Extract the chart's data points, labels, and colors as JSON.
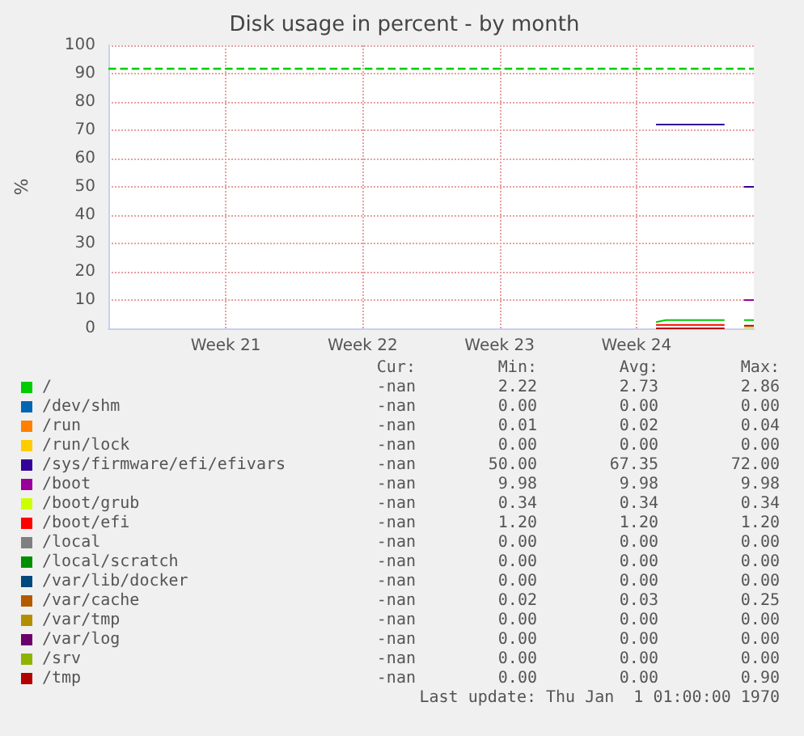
{
  "chart_data": {
    "type": "line",
    "title": "Disk usage in percent - by month",
    "ylabel": "%",
    "categories": [
      null,
      null,
      null,
      null,
      null,
      null,
      null,
      null,
      null,
      null,
      null,
      null,
      "Week 21",
      null,
      null,
      null,
      null,
      null,
      null,
      null,
      null,
      null,
      null,
      null,
      null,
      null,
      "Week 22",
      null,
      null,
      null,
      null,
      null,
      null,
      null,
      null,
      null,
      null,
      null,
      null,
      null,
      "Week 23",
      null,
      null,
      null,
      null,
      null,
      null,
      null,
      null,
      null,
      null,
      null,
      null,
      null,
      "Week 24",
      null,
      null,
      null,
      null,
      null,
      null,
      null,
      null,
      null,
      null,
      null,
      null
    ],
    "ylim": [
      0,
      100
    ],
    "yticks": [
      0,
      10,
      20,
      30,
      40,
      50,
      60,
      70,
      80,
      90,
      100
    ],
    "grid": true,
    "legend": "bottom",
    "ref_lines": [
      {
        "axis": "y",
        "value": 92,
        "color": "#00cc00",
        "line_style": "dashed"
      }
    ],
    "series": [
      {
        "name": "/",
        "color": "#00cc00",
        "values": [
          null,
          null,
          null,
          null,
          null,
          null,
          null,
          null,
          null,
          null,
          null,
          null,
          null,
          null,
          null,
          null,
          null,
          null,
          null,
          null,
          null,
          null,
          null,
          null,
          null,
          null,
          null,
          null,
          null,
          null,
          null,
          null,
          null,
          null,
          null,
          null,
          null,
          null,
          null,
          null,
          null,
          null,
          null,
          null,
          null,
          null,
          null,
          null,
          null,
          null,
          null,
          null,
          null,
          null,
          null,
          null,
          2.2,
          2.9,
          2.9,
          2.9,
          2.9,
          2.9,
          2.9,
          2.9,
          null,
          2.9,
          2.9
        ]
      },
      {
        "name": "/dev/shm",
        "color": "#0066b3",
        "values": [
          null,
          null,
          null,
          null,
          null,
          null,
          null,
          null,
          null,
          null,
          null,
          null,
          null,
          null,
          null,
          null,
          null,
          null,
          null,
          null,
          null,
          null,
          null,
          null,
          null,
          null,
          null,
          null,
          null,
          null,
          null,
          null,
          null,
          null,
          null,
          null,
          null,
          null,
          null,
          null,
          null,
          null,
          null,
          null,
          null,
          null,
          null,
          null,
          null,
          null,
          null,
          null,
          null,
          null,
          null,
          null,
          null,
          null,
          null,
          null,
          null,
          null,
          null,
          null,
          null,
          null,
          null
        ]
      },
      {
        "name": "/run",
        "color": "#ff8000",
        "values": [
          null,
          null,
          null,
          null,
          null,
          null,
          null,
          null,
          null,
          null,
          null,
          null,
          null,
          null,
          null,
          null,
          null,
          null,
          null,
          null,
          null,
          null,
          null,
          null,
          null,
          null,
          null,
          null,
          null,
          null,
          null,
          null,
          null,
          null,
          null,
          null,
          null,
          null,
          null,
          null,
          null,
          null,
          null,
          null,
          null,
          null,
          null,
          null,
          null,
          null,
          null,
          null,
          null,
          null,
          null,
          null,
          null,
          null,
          null,
          null,
          null,
          null,
          null,
          null,
          null,
          null,
          null
        ]
      },
      {
        "name": "/run/lock",
        "color": "#ffcc00",
        "values": [
          null,
          null,
          null,
          null,
          null,
          null,
          null,
          null,
          null,
          null,
          null,
          null,
          null,
          null,
          null,
          null,
          null,
          null,
          null,
          null,
          null,
          null,
          null,
          null,
          null,
          null,
          null,
          null,
          null,
          null,
          null,
          null,
          null,
          null,
          null,
          null,
          null,
          null,
          null,
          null,
          null,
          null,
          null,
          null,
          null,
          null,
          null,
          null,
          null,
          null,
          null,
          null,
          null,
          null,
          null,
          null,
          null,
          null,
          null,
          null,
          null,
          null,
          null,
          null,
          null,
          null,
          null
        ]
      },
      {
        "name": "/sys/firmware/efi/efivars",
        "color": "#330099",
        "values": [
          null,
          null,
          null,
          null,
          null,
          null,
          null,
          null,
          null,
          null,
          null,
          null,
          null,
          null,
          null,
          null,
          null,
          null,
          null,
          null,
          null,
          null,
          null,
          null,
          null,
          null,
          null,
          null,
          null,
          null,
          null,
          null,
          null,
          null,
          null,
          null,
          null,
          null,
          null,
          null,
          null,
          null,
          null,
          null,
          null,
          null,
          null,
          null,
          null,
          null,
          null,
          null,
          null,
          null,
          null,
          null,
          72,
          72,
          72,
          72,
          72,
          72,
          72,
          72,
          null,
          50,
          50
        ]
      },
      {
        "name": "/boot",
        "color": "#990099",
        "values": [
          null,
          null,
          null,
          null,
          null,
          null,
          null,
          null,
          null,
          null,
          null,
          null,
          null,
          null,
          null,
          null,
          null,
          null,
          null,
          null,
          null,
          null,
          null,
          null,
          null,
          null,
          null,
          null,
          null,
          null,
          null,
          null,
          null,
          null,
          null,
          null,
          null,
          null,
          null,
          null,
          null,
          null,
          null,
          null,
          null,
          null,
          null,
          null,
          null,
          null,
          null,
          null,
          null,
          null,
          null,
          null,
          null,
          null,
          null,
          null,
          null,
          null,
          null,
          null,
          null,
          10,
          10
        ]
      },
      {
        "name": "/boot/grub",
        "color": "#ccff00",
        "values": [
          null,
          null,
          null,
          null,
          null,
          null,
          null,
          null,
          null,
          null,
          null,
          null,
          null,
          null,
          null,
          null,
          null,
          null,
          null,
          null,
          null,
          null,
          null,
          null,
          null,
          null,
          null,
          null,
          null,
          null,
          null,
          null,
          null,
          null,
          null,
          null,
          null,
          null,
          null,
          null,
          null,
          null,
          null,
          null,
          null,
          null,
          null,
          null,
          null,
          null,
          null,
          null,
          null,
          null,
          null,
          null,
          null,
          null,
          null,
          null,
          null,
          null,
          null,
          null,
          null,
          0.3,
          0.3
        ]
      },
      {
        "name": "/boot/efi",
        "color": "#ff0000",
        "values": [
          null,
          null,
          null,
          null,
          null,
          null,
          null,
          null,
          null,
          null,
          null,
          null,
          null,
          null,
          null,
          null,
          null,
          null,
          null,
          null,
          null,
          null,
          null,
          null,
          null,
          null,
          null,
          null,
          null,
          null,
          null,
          null,
          null,
          null,
          null,
          null,
          null,
          null,
          null,
          null,
          null,
          null,
          null,
          null,
          null,
          null,
          null,
          null,
          null,
          null,
          null,
          null,
          null,
          null,
          null,
          null,
          1.2,
          1.2,
          1.2,
          1.2,
          1.2,
          1.2,
          1.2,
          1.2,
          null,
          null,
          null
        ]
      },
      {
        "name": "/local",
        "color": "#808080",
        "values": [
          null,
          null,
          null,
          null,
          null,
          null,
          null,
          null,
          null,
          null,
          null,
          null,
          null,
          null,
          null,
          null,
          null,
          null,
          null,
          null,
          null,
          null,
          null,
          null,
          null,
          null,
          null,
          null,
          null,
          null,
          null,
          null,
          null,
          null,
          null,
          null,
          null,
          null,
          null,
          null,
          null,
          null,
          null,
          null,
          null,
          null,
          null,
          null,
          null,
          null,
          null,
          null,
          null,
          null,
          null,
          null,
          null,
          null,
          null,
          null,
          null,
          null,
          null,
          null,
          null,
          null,
          null
        ]
      },
      {
        "name": "/local/scratch",
        "color": "#008f00",
        "values": [
          null,
          null,
          null,
          null,
          null,
          null,
          null,
          null,
          null,
          null,
          null,
          null,
          null,
          null,
          null,
          null,
          null,
          null,
          null,
          null,
          null,
          null,
          null,
          null,
          null,
          null,
          null,
          null,
          null,
          null,
          null,
          null,
          null,
          null,
          null,
          null,
          null,
          null,
          null,
          null,
          null,
          null,
          null,
          null,
          null,
          null,
          null,
          null,
          null,
          null,
          null,
          null,
          null,
          null,
          null,
          null,
          null,
          null,
          null,
          null,
          null,
          null,
          null,
          null,
          null,
          null,
          null
        ]
      },
      {
        "name": "/var/lib/docker",
        "color": "#00487d",
        "values": [
          null,
          null,
          null,
          null,
          null,
          null,
          null,
          null,
          null,
          null,
          null,
          null,
          null,
          null,
          null,
          null,
          null,
          null,
          null,
          null,
          null,
          null,
          null,
          null,
          null,
          null,
          null,
          null,
          null,
          null,
          null,
          null,
          null,
          null,
          null,
          null,
          null,
          null,
          null,
          null,
          null,
          null,
          null,
          null,
          null,
          null,
          null,
          null,
          null,
          null,
          null,
          null,
          null,
          null,
          null,
          null,
          null,
          null,
          null,
          null,
          null,
          null,
          null,
          null,
          null,
          null,
          null
        ]
      },
      {
        "name": "/var/cache",
        "color": "#b35a00",
        "values": [
          null,
          null,
          null,
          null,
          null,
          null,
          null,
          null,
          null,
          null,
          null,
          null,
          null,
          null,
          null,
          null,
          null,
          null,
          null,
          null,
          null,
          null,
          null,
          null,
          null,
          null,
          null,
          null,
          null,
          null,
          null,
          null,
          null,
          null,
          null,
          null,
          null,
          null,
          null,
          null,
          null,
          null,
          null,
          null,
          null,
          null,
          null,
          null,
          null,
          null,
          null,
          null,
          null,
          null,
          null,
          null,
          null,
          null,
          null,
          null,
          null,
          null,
          null,
          null,
          null,
          null,
          null
        ]
      },
      {
        "name": "/var/tmp",
        "color": "#b38f00",
        "values": [
          null,
          null,
          null,
          null,
          null,
          null,
          null,
          null,
          null,
          null,
          null,
          null,
          null,
          null,
          null,
          null,
          null,
          null,
          null,
          null,
          null,
          null,
          null,
          null,
          null,
          null,
          null,
          null,
          null,
          null,
          null,
          null,
          null,
          null,
          null,
          null,
          null,
          null,
          null,
          null,
          null,
          null,
          null,
          null,
          null,
          null,
          null,
          null,
          null,
          null,
          null,
          null,
          null,
          null,
          null,
          null,
          null,
          null,
          null,
          null,
          null,
          null,
          null,
          null,
          null,
          null,
          null
        ]
      },
      {
        "name": "/var/log",
        "color": "#6b006b",
        "values": [
          null,
          null,
          null,
          null,
          null,
          null,
          null,
          null,
          null,
          null,
          null,
          null,
          null,
          null,
          null,
          null,
          null,
          null,
          null,
          null,
          null,
          null,
          null,
          null,
          null,
          null,
          null,
          null,
          null,
          null,
          null,
          null,
          null,
          null,
          null,
          null,
          null,
          null,
          null,
          null,
          null,
          null,
          null,
          null,
          null,
          null,
          null,
          null,
          null,
          null,
          null,
          null,
          null,
          null,
          null,
          null,
          null,
          null,
          null,
          null,
          null,
          null,
          null,
          null,
          null,
          null,
          null
        ]
      },
      {
        "name": "/srv",
        "color": "#8fb300",
        "values": [
          null,
          null,
          null,
          null,
          null,
          null,
          null,
          null,
          null,
          null,
          null,
          null,
          null,
          null,
          null,
          null,
          null,
          null,
          null,
          null,
          null,
          null,
          null,
          null,
          null,
          null,
          null,
          null,
          null,
          null,
          null,
          null,
          null,
          null,
          null,
          null,
          null,
          null,
          null,
          null,
          null,
          null,
          null,
          null,
          null,
          null,
          null,
          null,
          null,
          null,
          null,
          null,
          null,
          null,
          null,
          null,
          null,
          null,
          null,
          null,
          null,
          null,
          null,
          null,
          null,
          null,
          null
        ]
      },
      {
        "name": "/tmp",
        "color": "#b30000",
        "values": [
          null,
          null,
          null,
          null,
          null,
          null,
          null,
          null,
          null,
          null,
          null,
          null,
          null,
          null,
          null,
          null,
          null,
          null,
          null,
          null,
          null,
          null,
          null,
          null,
          null,
          null,
          null,
          null,
          null,
          null,
          null,
          null,
          null,
          null,
          null,
          null,
          null,
          null,
          null,
          null,
          null,
          null,
          null,
          null,
          null,
          null,
          null,
          null,
          null,
          null,
          null,
          null,
          null,
          null,
          null,
          null,
          0,
          0,
          0,
          0,
          0,
          0,
          0,
          0,
          null,
          0.9,
          0.9
        ]
      }
    ],
    "annotations": [
      "Cur:",
      "Min:",
      "Avg:",
      "Max:",
      "-nan",
      "2.22",
      "2.73",
      "2.86",
      "-nan",
      "0.00",
      "0.00",
      "0.00",
      "-nan",
      "0.01",
      "0.02",
      "0.04",
      "-nan",
      "0.00",
      "0.00",
      "0.00",
      "-nan",
      "50.00",
      "67.35",
      "72.00",
      "-nan",
      "9.98",
      "9.98",
      "9.98",
      "-nan",
      "0.34",
      "0.34",
      "0.34",
      "-nan",
      "1.20",
      "1.20",
      "1.20",
      "-nan",
      "0.00",
      "0.00",
      "0.00",
      "-nan",
      "0.00",
      "0.00",
      "0.00",
      "-nan",
      "0.00",
      "0.00",
      "0.00",
      "-nan",
      "0.02",
      "0.03",
      "0.25",
      "-nan",
      "0.00",
      "0.00",
      "0.00",
      "-nan",
      "0.00",
      "0.00",
      "0.00",
      "-nan",
      "0.00",
      "0.00",
      "0.00",
      "-nan",
      "0.00",
      "0.00",
      "0.90",
      "Last update: Thu Jan  1 01:00:00 1970"
    ]
  }
}
